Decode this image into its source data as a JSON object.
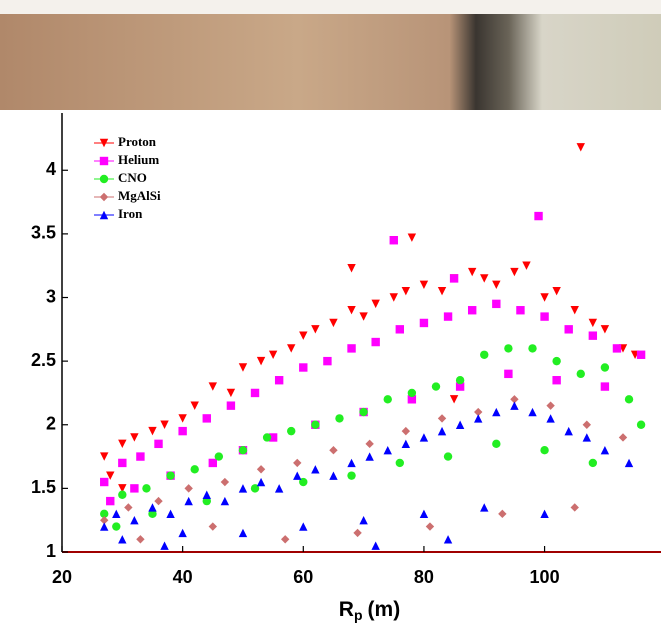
{
  "chart_data": {
    "type": "scatter",
    "x_label_parts": [
      "R",
      "p",
      "(m)"
    ],
    "xlim": [
      20,
      119.3
    ],
    "ylim": [
      1,
      4.45
    ],
    "xticks": [
      20,
      40,
      60,
      80,
      100
    ],
    "yticks": [
      1,
      1.5,
      2,
      2.5,
      3,
      3.5,
      4
    ],
    "legend": "upper left",
    "series": [
      {
        "name": "Proton",
        "color": "#ff0000",
        "marker": "triangle-down",
        "x": [
          27,
          28,
          30,
          32,
          35,
          37,
          40,
          42,
          45,
          48,
          50,
          53,
          55,
          58,
          60,
          62,
          65,
          68,
          70,
          72,
          75,
          77,
          80,
          83,
          85,
          88,
          90,
          92,
          95,
          97,
          100,
          102,
          105,
          108,
          110,
          113,
          115,
          106,
          75,
          78,
          68,
          30,
          50,
          85
        ],
        "y": [
          1.75,
          1.6,
          1.85,
          1.9,
          1.95,
          2.0,
          2.05,
          2.15,
          2.3,
          2.25,
          2.45,
          2.5,
          2.55,
          2.6,
          2.7,
          2.75,
          2.8,
          2.9,
          2.85,
          2.95,
          3.0,
          3.05,
          3.1,
          3.05,
          3.15,
          3.2,
          3.15,
          3.1,
          3.2,
          3.25,
          3.0,
          3.05,
          2.9,
          2.8,
          2.75,
          2.6,
          2.55,
          4.18,
          3.45,
          3.47,
          3.23,
          1.5,
          1.8,
          2.2
        ]
      },
      {
        "name": "Helium",
        "color": "#ff00ff",
        "marker": "square",
        "x": [
          27,
          30,
          33,
          36,
          40,
          44,
          48,
          52,
          56,
          60,
          64,
          68,
          72,
          76,
          80,
          84,
          88,
          92,
          96,
          100,
          104,
          108,
          112,
          116,
          28,
          32,
          38,
          45,
          50,
          55,
          62,
          70,
          78,
          86,
          94,
          102,
          110,
          99,
          75,
          85
        ],
        "y": [
          1.55,
          1.7,
          1.75,
          1.85,
          1.95,
          2.05,
          2.15,
          2.25,
          2.35,
          2.45,
          2.5,
          2.6,
          2.65,
          2.75,
          2.8,
          2.85,
          2.9,
          2.95,
          2.9,
          2.85,
          2.75,
          2.7,
          2.6,
          2.55,
          1.4,
          1.5,
          1.6,
          1.7,
          1.8,
          1.9,
          2.0,
          2.1,
          2.2,
          2.3,
          2.4,
          2.35,
          2.3,
          3.64,
          3.45,
          3.15
        ]
      },
      {
        "name": "CNO",
        "color": "#22ee22",
        "marker": "circle",
        "x": [
          27,
          30,
          34,
          38,
          42,
          46,
          50,
          54,
          58,
          62,
          66,
          70,
          74,
          78,
          82,
          86,
          90,
          94,
          98,
          102,
          106,
          110,
          114,
          29,
          35,
          44,
          52,
          60,
          68,
          76,
          84,
          92,
          100,
          108,
          116
        ],
        "y": [
          1.3,
          1.45,
          1.5,
          1.6,
          1.65,
          1.75,
          1.8,
          1.9,
          1.95,
          2.0,
          2.05,
          2.1,
          2.2,
          2.25,
          2.3,
          2.35,
          2.55,
          2.6,
          2.6,
          2.5,
          2.4,
          2.45,
          2.2,
          1.2,
          1.3,
          1.4,
          1.5,
          1.55,
          1.6,
          1.7,
          1.75,
          1.85,
          1.8,
          1.7,
          2.0
        ]
      },
      {
        "name": "MgAlSi",
        "color": "#cc6f6f",
        "marker": "diamond",
        "x": [
          27,
          31,
          36,
          41,
          47,
          53,
          59,
          65,
          71,
          77,
          83,
          89,
          95,
          101,
          107,
          113,
          33,
          45,
          57,
          69,
          81,
          93,
          105
        ],
        "y": [
          1.25,
          1.35,
          1.4,
          1.5,
          1.55,
          1.65,
          1.7,
          1.8,
          1.85,
          1.95,
          2.05,
          2.1,
          2.2,
          2.15,
          2.0,
          1.9,
          1.1,
          1.2,
          1.1,
          1.15,
          1.2,
          1.3,
          1.35
        ]
      },
      {
        "name": "Iron",
        "color": "#0000ff",
        "marker": "triangle-up",
        "x": [
          27,
          29,
          32,
          35,
          38,
          41,
          44,
          47,
          50,
          53,
          56,
          59,
          62,
          65,
          68,
          71,
          74,
          77,
          80,
          83,
          86,
          89,
          92,
          95,
          98,
          101,
          104,
          107,
          110,
          114,
          30,
          40,
          50,
          60,
          70,
          80,
          90,
          100,
          37,
          72,
          84
        ],
        "y": [
          1.2,
          1.3,
          1.25,
          1.35,
          1.3,
          1.4,
          1.45,
          1.4,
          1.5,
          1.55,
          1.5,
          1.6,
          1.65,
          1.6,
          1.7,
          1.75,
          1.8,
          1.85,
          1.9,
          1.95,
          2.0,
          2.05,
          2.1,
          2.15,
          2.1,
          2.05,
          1.95,
          1.9,
          1.8,
          1.7,
          1.1,
          1.15,
          1.15,
          1.2,
          1.25,
          1.3,
          1.35,
          1.3,
          1.05,
          1.05,
          1.1
        ]
      }
    ]
  }
}
